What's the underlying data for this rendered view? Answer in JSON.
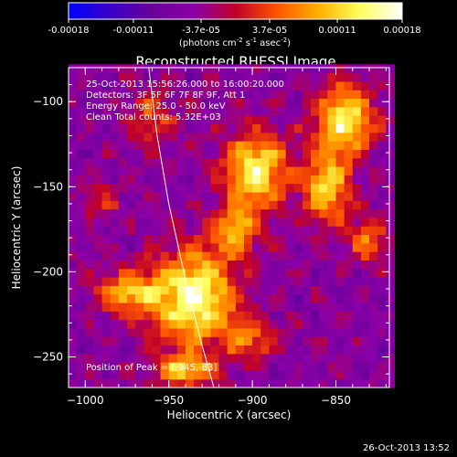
{
  "colorbar": {
    "ticks": [
      {
        "label": "-0.00018",
        "value": -0.00018
      },
      {
        "label": "-0.00011",
        "value": -0.00011
      },
      {
        "label": "-3.7e-05",
        "value": -3.7e-05
      },
      {
        "label": "3.7e-05",
        "value": 3.7e-05
      },
      {
        "label": "0.00011",
        "value": 0.00011
      },
      {
        "label": "0.00018",
        "value": 0.00018
      }
    ],
    "range": [
      -0.00018,
      0.00018
    ],
    "unit_label": "(photons cm",
    "unit_sup1": "-2",
    "unit_mid": " s",
    "unit_sup2": "-1",
    "unit_mid2": " asec",
    "unit_sup3": "-2",
    "unit_end": ")",
    "colors": [
      "#0000ff",
      "#3a00c8",
      "#6a009a",
      "#8a00a8",
      "#c0002a",
      "#ff5500",
      "#ffb000",
      "#ffff60",
      "#ffffff"
    ]
  },
  "chart_data": {
    "type": "heatmap",
    "title": "Reconstructed RHESSI Image",
    "xlabel": "Heliocentric X (arcsec)",
    "ylabel": "Heliocentric Y (arcsec)",
    "xlim": [
      -1010,
      -818
    ],
    "ylim": [
      -268,
      -80
    ],
    "x_ticks": [
      -1000,
      -950,
      -900,
      -850
    ],
    "y_ticks": [
      -100,
      -150,
      -200,
      -250
    ],
    "x_tick_labels": [
      "−1000",
      "−950",
      "−900",
      "−850"
    ],
    "y_tick_labels": [
      "−100",
      "−150",
      "−200",
      "−250"
    ],
    "annotations": [
      "25-Oct-2013 15:56:26.000 to 16:00:20.000",
      "Detectors: 3F 5F 6F 7F 8F 9F, Att 1",
      "Energy Range: 25.0 - 50.0 keV",
      "Clean     Total counts: 5.32E+03"
    ],
    "peak_label": "Position of Peak = [-945,-83]",
    "limb_curve": [
      [
        -962,
        -80
      ],
      [
        -957,
        -120
      ],
      [
        -950,
        -160
      ],
      [
        -941,
        -200
      ],
      [
        -931,
        -240
      ],
      [
        -923,
        -268
      ]
    ],
    "sources": [
      {
        "x": -935,
        "y": -215,
        "sx": 18,
        "sy": 20,
        "amp": 1.0
      },
      {
        "x": -975,
        "y": -212,
        "sx": 12,
        "sy": 8,
        "amp": 0.7
      },
      {
        "x": -898,
        "y": -140,
        "sx": 14,
        "sy": 16,
        "amp": 0.85
      },
      {
        "x": -910,
        "y": -175,
        "sx": 10,
        "sy": 10,
        "amp": 0.6
      },
      {
        "x": -845,
        "y": -110,
        "sx": 12,
        "sy": 14,
        "amp": 0.9
      },
      {
        "x": -855,
        "y": -150,
        "sx": 10,
        "sy": 14,
        "amp": 0.75
      },
      {
        "x": -830,
        "y": -180,
        "sx": 8,
        "sy": 10,
        "amp": 0.5
      },
      {
        "x": -900,
        "y": -240,
        "sx": 10,
        "sy": 8,
        "amp": 0.45
      },
      {
        "x": -940,
        "y": -258,
        "sx": 12,
        "sy": 6,
        "amp": 0.7
      },
      {
        "x": -960,
        "y": -110,
        "sx": 10,
        "sy": 12,
        "amp": 0.4
      },
      {
        "x": -990,
        "y": -160,
        "sx": 8,
        "sy": 8,
        "amp": 0.3
      }
    ]
  },
  "footer_timestamp": "26-Oct-2013 13:52"
}
